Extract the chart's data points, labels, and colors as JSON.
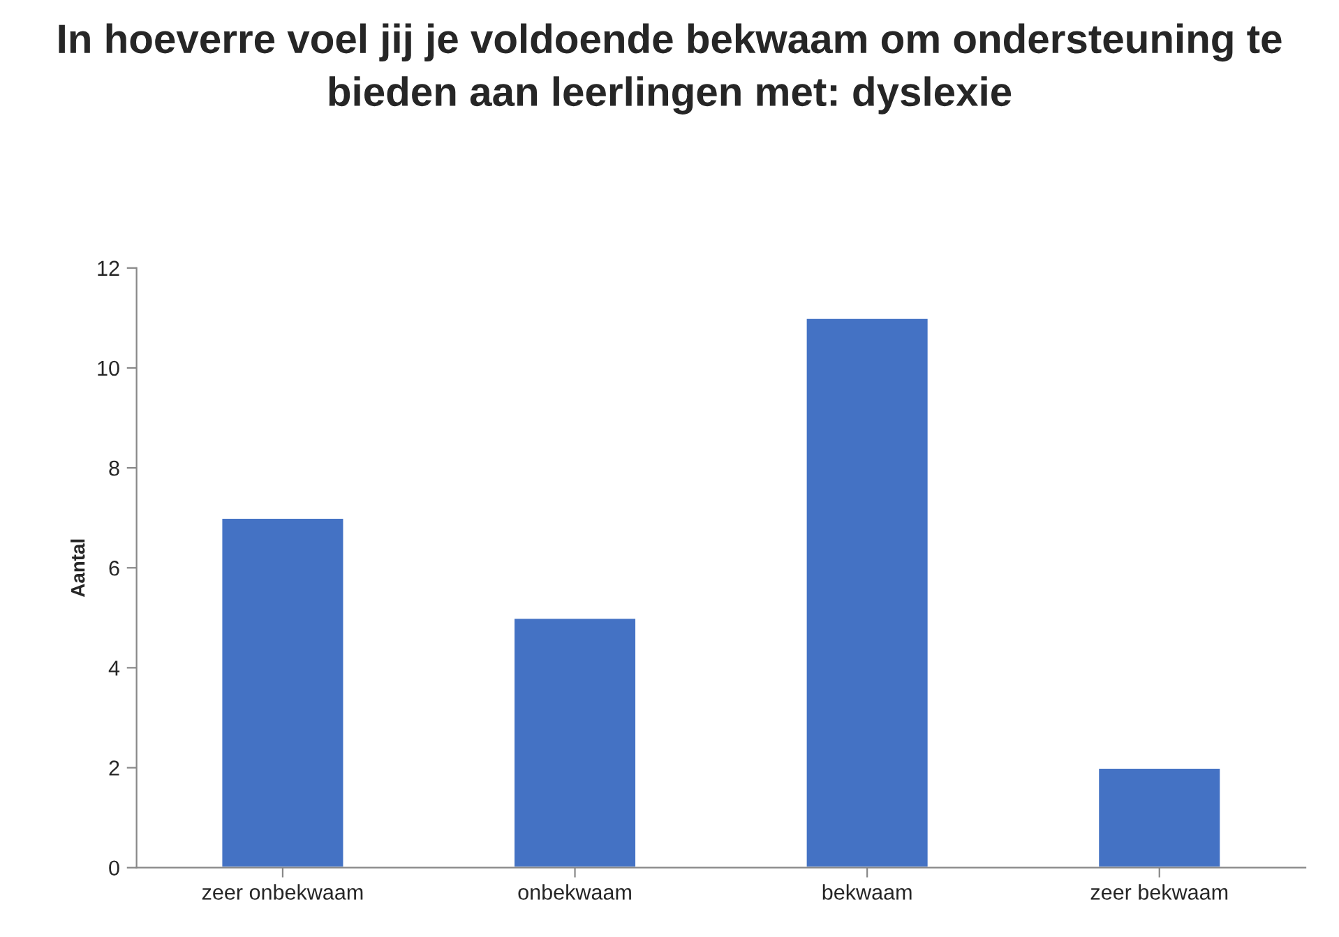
{
  "chart_data": {
    "type": "bar",
    "title": "In hoeverre voel jij je voldoende bekwaam om ondersteuning te bieden aan leerlingen met: dyslexie",
    "ylabel": "Aantal",
    "categories": [
      "zeer onbekwaam",
      "onbekwaam",
      "bekwaam",
      "zeer bekwaam"
    ],
    "values": [
      7,
      5,
      11,
      2
    ],
    "color": "#4472c4",
    "ylim": [
      0,
      12
    ],
    "yticks": [
      0,
      2,
      4,
      6,
      8,
      10,
      12
    ],
    "grid": false,
    "legend": false
  }
}
